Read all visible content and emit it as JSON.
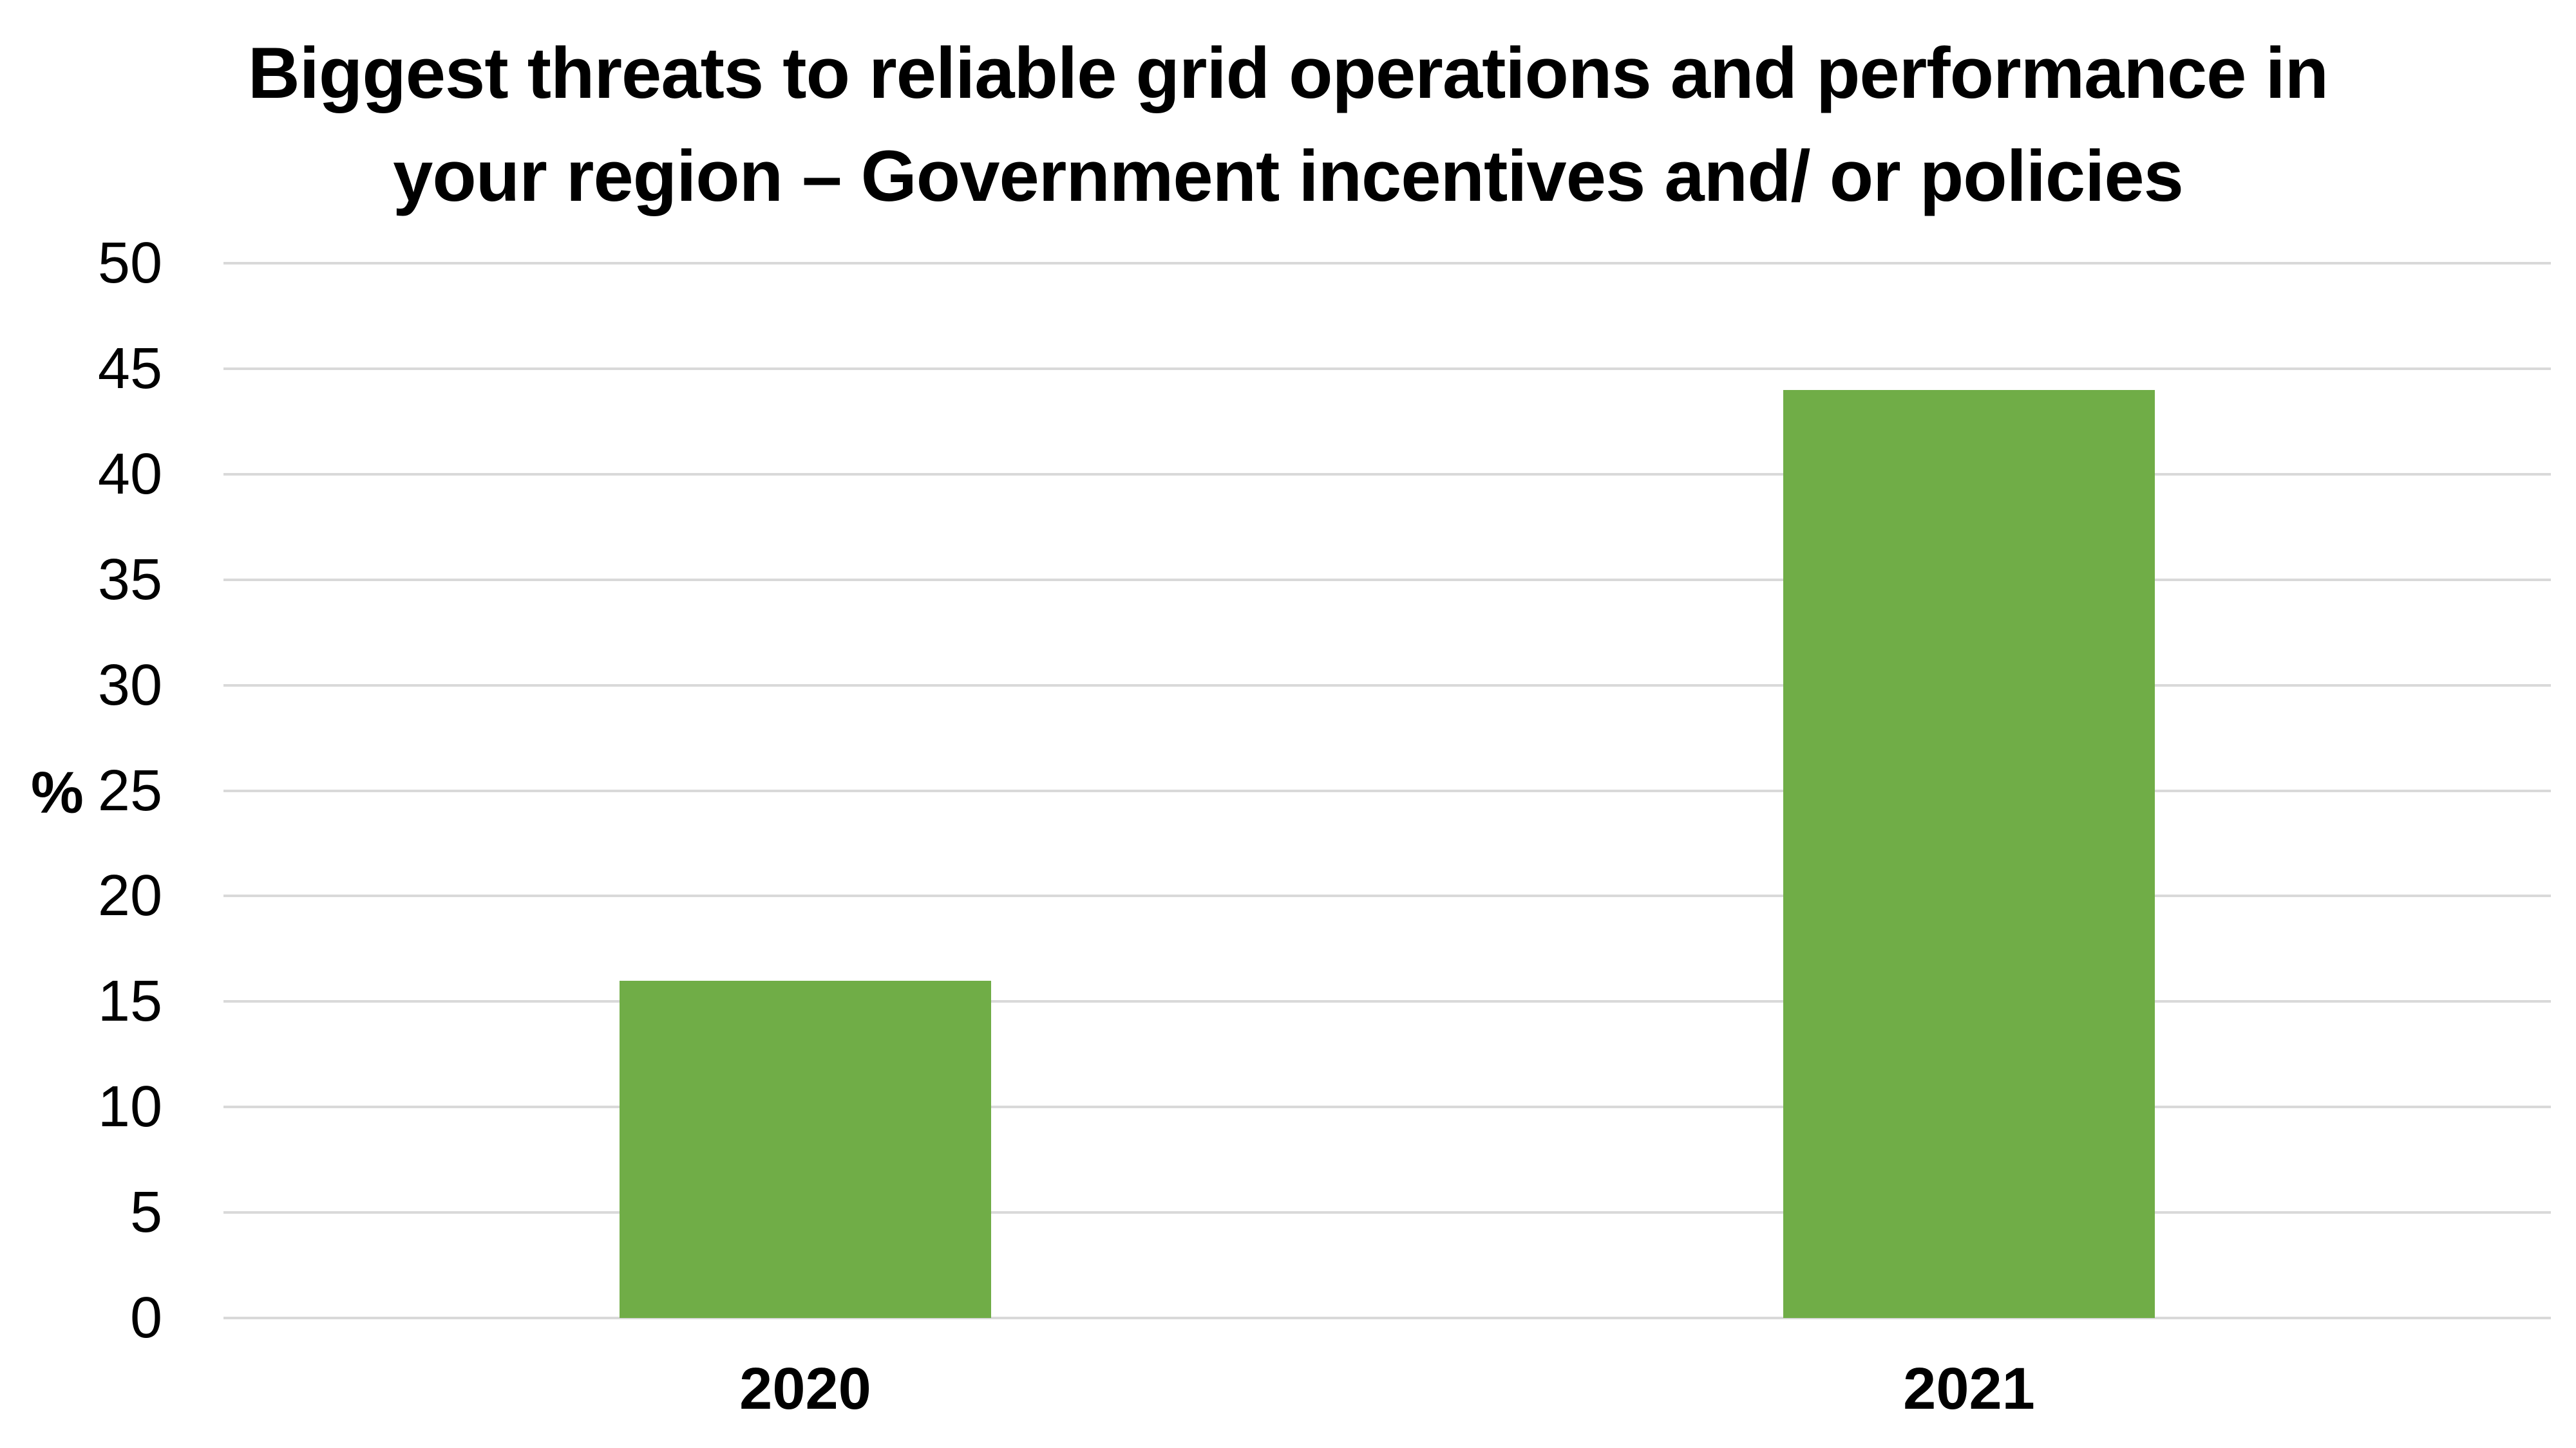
{
  "chart_data": {
    "type": "bar",
    "title": "Biggest threats to reliable grid operations and performance in your region – Government incentives and/ or policies",
    "title_lines": [
      "Biggest threats to reliable grid operations and performance in",
      "your region – Government incentives and/ or policies"
    ],
    "categories": [
      "2020",
      "2021"
    ],
    "values": [
      16,
      44
    ],
    "xlabel": "",
    "ylabel": "%",
    "ylim": [
      0,
      50
    ],
    "ytick_step": 5,
    "yticks": [
      0,
      5,
      10,
      15,
      20,
      25,
      30,
      35,
      40,
      45,
      50
    ],
    "grid": "horizontal",
    "legend": "none",
    "bar_color": "#70AD47",
    "gridline_color": "#D9D9D9",
    "text_color": "#000000",
    "bar_width_fraction": 0.1597
  }
}
